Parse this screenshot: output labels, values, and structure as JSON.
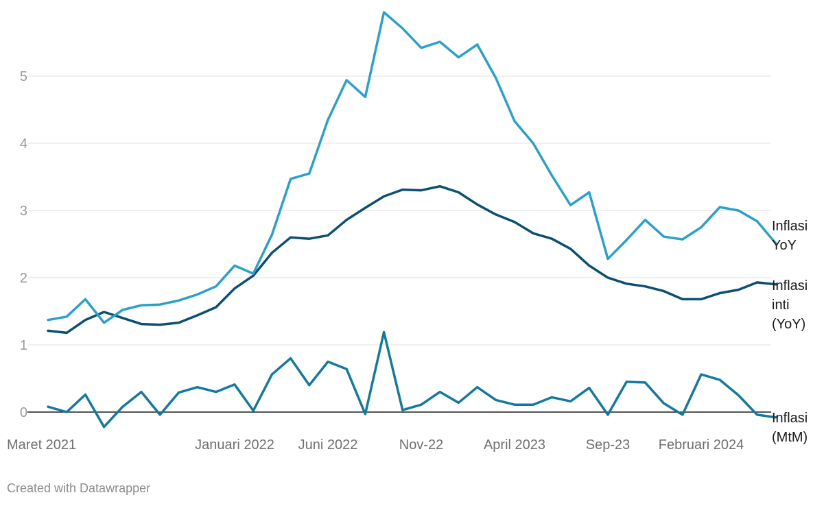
{
  "chart_data": {
    "type": "line",
    "ylim": [
      0,
      6
    ],
    "yticks": [
      0,
      1,
      2,
      3,
      4,
      5
    ],
    "grid": true,
    "legend": "direct labels at line ends (right)",
    "x": [
      "Mar 2021",
      "Apr 2021",
      "Mei 2021",
      "Jun 2021",
      "Jul 2021",
      "Agu 2021",
      "Sep 2021",
      "Okt 2021",
      "Nov 2021",
      "Des 2021",
      "Jan 2022",
      "Feb 2022",
      "Mar 2022",
      "Apr 2022",
      "Mei 2022",
      "Jun 2022",
      "Jul 2022",
      "Agu 2022",
      "Sep 2022",
      "Okt 2022",
      "Nov 2022",
      "Des 2022",
      "Jan 2023",
      "Feb 2023",
      "Mar 2023",
      "Apr 2023",
      "Mei 2023",
      "Jun 2023",
      "Jul 2023",
      "Agu 2023",
      "Sep 2023",
      "Okt 2023",
      "Nov 2023",
      "Des 2023",
      "Jan 2024",
      "Feb 2024",
      "Mar 2024",
      "Apr 2024",
      "Mei 2024",
      "Jun 2024"
    ],
    "xtick_labels": [
      {
        "index": 0,
        "label": "Maret 2021"
      },
      {
        "index": 10,
        "label": "Januari 2022"
      },
      {
        "index": 15,
        "label": "Juni 2022"
      },
      {
        "index": 20,
        "label": "Nov-22"
      },
      {
        "index": 25,
        "label": "April 2023"
      },
      {
        "index": 30,
        "label": "Sep-23"
      },
      {
        "index": 35,
        "label": "Februari 2024"
      }
    ],
    "series": [
      {
        "name": "Inflasi YoY",
        "label_lines": [
          "Inflasi",
          "YoY"
        ],
        "color": "#2aa1cc",
        "values": [
          1.37,
          1.42,
          1.68,
          1.33,
          1.52,
          1.59,
          1.6,
          1.66,
          1.75,
          1.87,
          2.18,
          2.06,
          2.64,
          3.47,
          3.55,
          4.35,
          4.94,
          4.69,
          5.95,
          5.71,
          5.42,
          5.51,
          5.28,
          5.47,
          4.97,
          4.33,
          4.0,
          3.52,
          3.08,
          3.27,
          2.28,
          2.56,
          2.86,
          2.61,
          2.57,
          2.75,
          3.05,
          3.0,
          2.84,
          2.51
        ]
      },
      {
        "name": "Inflasi inti (YoY)",
        "label_lines": [
          "Inflasi",
          "inti",
          "(YoY)"
        ],
        "color": "#0b4f71",
        "values": [
          1.21,
          1.18,
          1.37,
          1.49,
          1.4,
          1.31,
          1.3,
          1.33,
          1.44,
          1.56,
          1.84,
          2.03,
          2.37,
          2.6,
          2.58,
          2.63,
          2.86,
          3.04,
          3.21,
          3.31,
          3.3,
          3.36,
          3.27,
          3.09,
          2.94,
          2.83,
          2.66,
          2.58,
          2.43,
          2.18,
          2.0,
          1.91,
          1.87,
          1.8,
          1.68,
          1.68,
          1.77,
          1.82,
          1.93,
          1.9
        ]
      },
      {
        "name": "Inflasi (MtM)",
        "label_lines": [
          "Inflasi",
          "(MtM)"
        ],
        "color": "#1479a0",
        "values": [
          0.08,
          0.0,
          0.26,
          -0.22,
          0.08,
          0.3,
          -0.04,
          0.29,
          0.37,
          0.3,
          0.41,
          0.02,
          0.56,
          0.8,
          0.4,
          0.75,
          0.64,
          -0.03,
          1.19,
          0.03,
          0.11,
          0.3,
          0.14,
          0.37,
          0.18,
          0.11,
          0.11,
          0.22,
          0.16,
          0.36,
          -0.04,
          0.45,
          0.44,
          0.13,
          -0.04,
          0.56,
          0.48,
          0.25,
          -0.04,
          -0.08
        ]
      }
    ]
  },
  "footer": {
    "text": "Created with Datawrapper"
  }
}
